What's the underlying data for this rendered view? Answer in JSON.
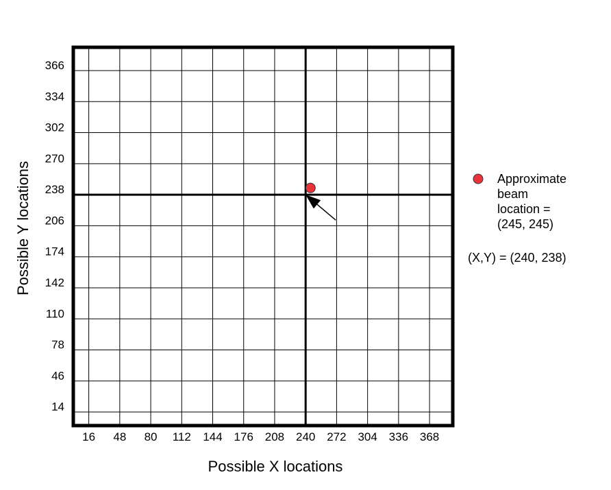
{
  "chart_data": {
    "type": "scatter",
    "xlabel": "Possible X locations",
    "ylabel": "Possible Y locations",
    "x_ticks": [
      16,
      48,
      80,
      112,
      144,
      176,
      208,
      240,
      272,
      304,
      336,
      368
    ],
    "y_ticks": [
      14,
      46,
      78,
      110,
      142,
      174,
      206,
      238,
      270,
      302,
      334,
      366
    ],
    "xlim": [
      0,
      392
    ],
    "ylim": [
      0,
      390
    ],
    "grid": true,
    "crosshair": {
      "x": 240,
      "y": 238
    },
    "series": [
      {
        "name": "Approximate beam location = (245, 245)",
        "color": "#e8333a",
        "points": [
          {
            "x": 245,
            "y": 245
          }
        ]
      }
    ],
    "legend": {
      "position": "right",
      "lines": [
        "Approximate",
        "beam",
        "location =",
        "(245, 245)"
      ]
    },
    "annotation": {
      "text": "(X,Y) = (240, 238)",
      "arrow_to": {
        "x": 240,
        "y": 238
      }
    }
  }
}
